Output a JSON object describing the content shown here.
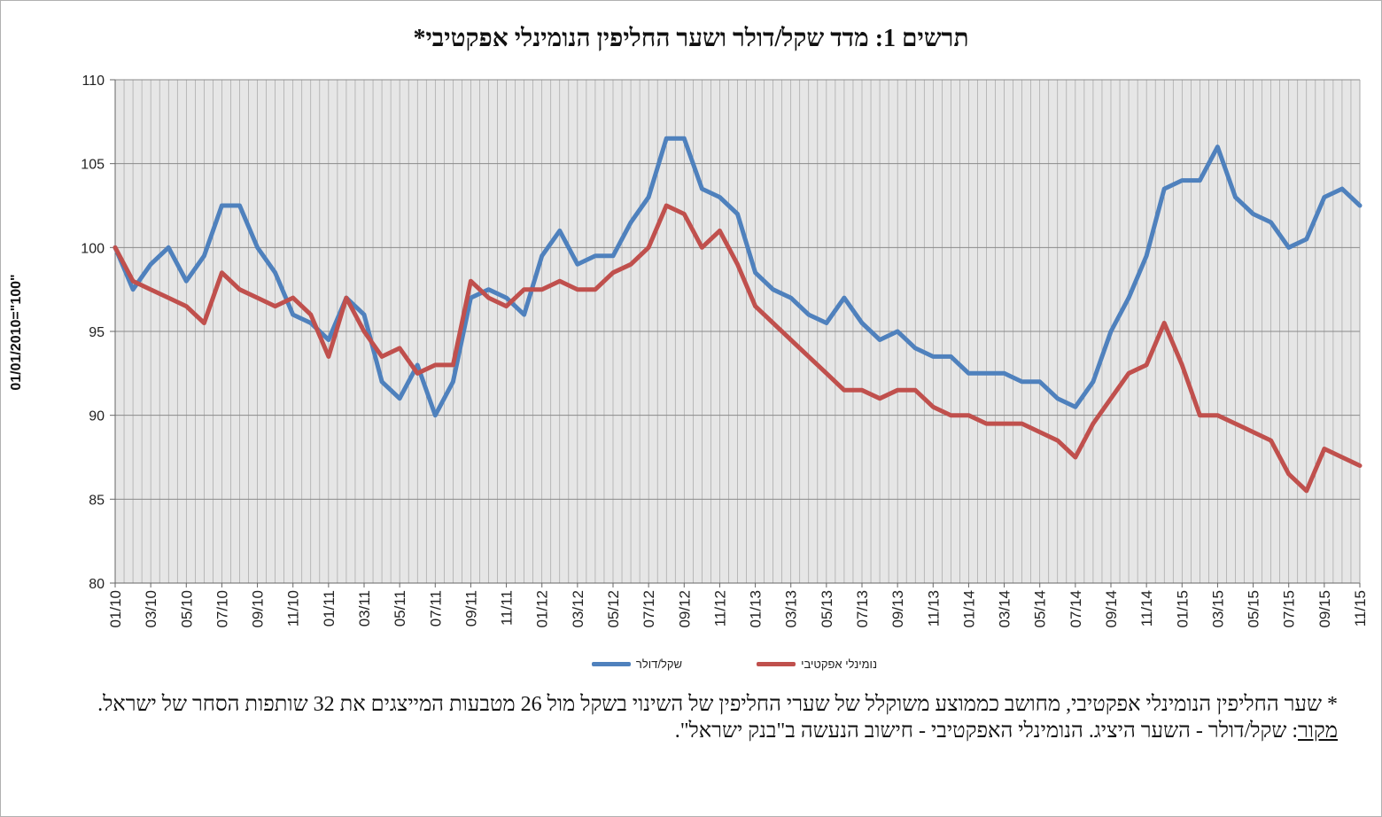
{
  "chart_data": {
    "type": "line",
    "title": "תרשים 1: מדד שקל/דולר ושער החליפין הנומינלי אפקטיבי*",
    "ylabel": "01/01/2010=\"100\"",
    "xlabel": "",
    "ylim": [
      80,
      110
    ],
    "yticks": [
      80,
      85,
      90,
      95,
      100,
      105,
      110
    ],
    "grid": true,
    "legend_position": "bottom",
    "x_tick_labels": [
      "01/10",
      "03/10",
      "05/10",
      "07/10",
      "09/10",
      "11/10",
      "01/11",
      "03/11",
      "05/11",
      "07/11",
      "09/11",
      "11/11",
      "01/12",
      "03/12",
      "05/12",
      "07/12",
      "09/12",
      "11/12",
      "01/13",
      "03/13",
      "05/13",
      "07/13",
      "09/13",
      "11/13",
      "01/14",
      "03/14",
      "05/14",
      "07/14",
      "09/14",
      "11/14",
      "01/15",
      "03/15",
      "05/15",
      "07/15",
      "09/15",
      "11/15"
    ],
    "x": [
      "01/10",
      "02/10",
      "03/10",
      "04/10",
      "05/10",
      "06/10",
      "07/10",
      "08/10",
      "09/10",
      "10/10",
      "11/10",
      "12/10",
      "01/11",
      "02/11",
      "03/11",
      "04/11",
      "05/11",
      "06/11",
      "07/11",
      "08/11",
      "09/11",
      "10/11",
      "11/11",
      "12/11",
      "01/12",
      "02/12",
      "03/12",
      "04/12",
      "05/12",
      "06/12",
      "07/12",
      "08/12",
      "09/12",
      "10/12",
      "11/12",
      "12/12",
      "01/13",
      "02/13",
      "03/13",
      "04/13",
      "05/13",
      "06/13",
      "07/13",
      "08/13",
      "09/13",
      "10/13",
      "11/13",
      "12/13",
      "01/14",
      "02/14",
      "03/14",
      "04/14",
      "05/14",
      "06/14",
      "07/14",
      "08/14",
      "09/14",
      "10/14",
      "11/14",
      "12/14",
      "01/15",
      "02/15",
      "03/15",
      "04/15",
      "05/15",
      "06/15",
      "07/15",
      "08/15",
      "09/15",
      "10/15",
      "11/15"
    ],
    "series": [
      {
        "name": "שקל/דולר",
        "color": "#4f81bd",
        "values": [
          100,
          97.5,
          99,
          100,
          98,
          99.5,
          102.5,
          102.5,
          100,
          98.5,
          96,
          95.5,
          94.5,
          97,
          96,
          92,
          91,
          93,
          90,
          92,
          97,
          97.5,
          97,
          96,
          99.5,
          101,
          99,
          99.5,
          99.5,
          101.5,
          103,
          106.5,
          106.5,
          103.5,
          103,
          102,
          98.5,
          97.5,
          97,
          96,
          95.5,
          97,
          95.5,
          94.5,
          95,
          94,
          93.5,
          93.5,
          92.5,
          92.5,
          92.5,
          92,
          92,
          91,
          90.5,
          92,
          95,
          97,
          99.5,
          103.5,
          104,
          104,
          106,
          103,
          102,
          101.5,
          100,
          100.5,
          103,
          103.5,
          102.5
        ]
      },
      {
        "name": "נומינלי אפקטיבי",
        "color": "#c0504d",
        "values": [
          100,
          98,
          97.5,
          97,
          96.5,
          95.5,
          98.5,
          97.5,
          97,
          96.5,
          97,
          96,
          93.5,
          97,
          95,
          93.5,
          94,
          92.5,
          93,
          93,
          98,
          97,
          96.5,
          97.5,
          97.5,
          98,
          97.5,
          97.5,
          98.5,
          99,
          100,
          102.5,
          102,
          100,
          101,
          99,
          96.5,
          95.5,
          94.5,
          93.5,
          92.5,
          91.5,
          91.5,
          91,
          91.5,
          91.5,
          90.5,
          90,
          90,
          89.5,
          89.5,
          89.5,
          89,
          88.5,
          87.5,
          89.5,
          91,
          92.5,
          93,
          95.5,
          93,
          90,
          90,
          89.5,
          89,
          88.5,
          86.5,
          85.5,
          88,
          87.5,
          87
        ]
      }
    ]
  },
  "legend": {
    "items": [
      "שקל/דולר",
      "נומינלי אפקטיבי"
    ]
  },
  "notes": {
    "footnote": "* שער החליפין הנומינלי אפקטיבי, מחושב כממוצע משוקלל של שערי החליפין של השינוי בשקל מול 26 מטבעות המייצגים את 32 שותפות הסחר של ישראל.",
    "source_label": "מקור",
    "source_text": ": שקל/דולר - השער היציג. הנומינלי האפקטיבי - חישוב הנעשה ב\"בנק ישראל\"."
  }
}
